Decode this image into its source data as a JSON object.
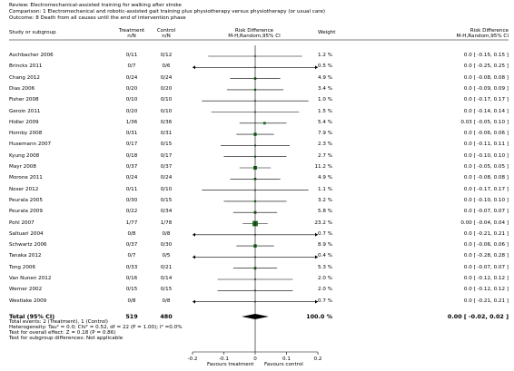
{
  "review": {
    "review_line": "Review:  Electromechanical-assisted training for walking after stroke",
    "comparison_line": "Comparison:  1 Electromechanical and robotic-assisted gait training plus physiotherapy versus physiotherapy (or usual care)",
    "outcome_line": "Outcome:  8 Death from all causes until the end of intervention phase"
  },
  "columns": {
    "study": "Study or subgroup",
    "treatment": "Treatment",
    "treatment_sub": "n/N",
    "control": "Control",
    "control_sub": "n/N",
    "rd": "Risk Difference",
    "rd_sub": "M-H,Random,95% CI",
    "weight": "Weight",
    "rd2": "Risk Difference",
    "rd2_sub": "M-H,Random,95% CI"
  },
  "chart_data": {
    "type": "forest",
    "x_axis": {
      "min": -0.2,
      "max": 0.2,
      "ticks": [
        "-0.2",
        "-0.1",
        "0",
        "0.1",
        "0.2"
      ],
      "tick_values": [
        -0.2,
        -0.1,
        0,
        0.1,
        0.2
      ]
    },
    "favours_left": "Favours treatment",
    "favours_right": "Favours control",
    "studies": [
      {
        "name": "Aschbacher 2006",
        "treatment": "0/11",
        "control": "0/12",
        "weight": "1.2 %",
        "ci_text": "0.0 [ -0.15, 0.15 ]",
        "rd": 0.0,
        "lo": -0.15,
        "hi": 0.15,
        "w": 1.2
      },
      {
        "name": "Brincks 2011",
        "treatment": "0/7",
        "control": "0/6",
        "weight": "0.5 %",
        "ci_text": "0.0 [ -0.25, 0.25 ]",
        "rd": 0.0,
        "lo": -0.25,
        "hi": 0.25,
        "w": 0.5
      },
      {
        "name": "Chang 2012",
        "treatment": "0/24",
        "control": "0/24",
        "weight": "4.9 %",
        "ci_text": "0.0 [ -0.08, 0.08 ]",
        "rd": 0.0,
        "lo": -0.08,
        "hi": 0.08,
        "w": 4.9
      },
      {
        "name": "Dias 2006",
        "treatment": "0/20",
        "control": "0/20",
        "weight": "3.4 %",
        "ci_text": "0.0 [ -0.09, 0.09 ]",
        "rd": 0.0,
        "lo": -0.09,
        "hi": 0.09,
        "w": 3.4
      },
      {
        "name": "Fisher 2008",
        "treatment": "0/10",
        "control": "0/10",
        "weight": "1.0 %",
        "ci_text": "0.0 [ -0.17, 0.17 ]",
        "rd": 0.0,
        "lo": -0.17,
        "hi": 0.17,
        "w": 1.0
      },
      {
        "name": "Geroin 2011",
        "treatment": "0/20",
        "control": "0/10",
        "weight": "1.5 %",
        "ci_text": "0.0 [ -0.14, 0.14 ]",
        "rd": 0.0,
        "lo": -0.14,
        "hi": 0.14,
        "w": 1.5
      },
      {
        "name": "Hidler 2009",
        "treatment": "1/36",
        "control": "0/36",
        "weight": "5.4 %",
        "ci_text": "0.03 [ -0.05, 0.10 ]",
        "rd": 0.03,
        "lo": -0.05,
        "hi": 0.1,
        "w": 5.4
      },
      {
        "name": "Hornby 2008",
        "treatment": "0/31",
        "control": "0/31",
        "weight": "7.9 %",
        "ci_text": "0.0 [ -0.06, 0.06 ]",
        "rd": 0.0,
        "lo": -0.06,
        "hi": 0.06,
        "w": 7.9
      },
      {
        "name": "Husemann 2007",
        "treatment": "0/17",
        "control": "0/15",
        "weight": "2.3 %",
        "ci_text": "0.0 [ -0.11, 0.11 ]",
        "rd": 0.0,
        "lo": -0.11,
        "hi": 0.11,
        "w": 2.3
      },
      {
        "name": "Kyung 2008",
        "treatment": "0/18",
        "control": "0/17",
        "weight": "2.7 %",
        "ci_text": "0.0 [ -0.10, 0.10 ]",
        "rd": 0.0,
        "lo": -0.1,
        "hi": 0.1,
        "w": 2.7
      },
      {
        "name": "Mayr 2008",
        "treatment": "0/37",
        "control": "0/37",
        "weight": "11.2 %",
        "ci_text": "0.0 [ -0.05, 0.05 ]",
        "rd": 0.0,
        "lo": -0.05,
        "hi": 0.05,
        "w": 11.2
      },
      {
        "name": "Morone 2011",
        "treatment": "0/24",
        "control": "0/24",
        "weight": "4.9 %",
        "ci_text": "0.0 [ -0.08, 0.08 ]",
        "rd": 0.0,
        "lo": -0.08,
        "hi": 0.08,
        "w": 4.9
      },
      {
        "name": "Noser 2012",
        "treatment": "0/11",
        "control": "0/10",
        "weight": "1.1 %",
        "ci_text": "0.0 [ -0.17, 0.17 ]",
        "rd": 0.0,
        "lo": -0.17,
        "hi": 0.17,
        "w": 1.1
      },
      {
        "name": "Peurala 2005",
        "treatment": "0/30",
        "control": "0/15",
        "weight": "3.2 %",
        "ci_text": "0.0 [ -0.10, 0.10 ]",
        "rd": 0.0,
        "lo": -0.1,
        "hi": 0.1,
        "w": 3.2
      },
      {
        "name": "Peurala 2009",
        "treatment": "0/22",
        "control": "0/34",
        "weight": "5.8 %",
        "ci_text": "0.0 [ -0.07, 0.07 ]",
        "rd": 0.0,
        "lo": -0.07,
        "hi": 0.07,
        "w": 5.8
      },
      {
        "name": "Pohl 2007",
        "treatment": "1/77",
        "control": "1/78",
        "weight": "23.2 %",
        "ci_text": "0.00 [ -0.04, 0.04 ]",
        "rd": 0.0,
        "lo": -0.04,
        "hi": 0.04,
        "w": 23.2
      },
      {
        "name": "Saltuari 2004",
        "treatment": "0/8",
        "control": "0/8",
        "weight": "0.7 %",
        "ci_text": "0.0 [ -0.21, 0.21 ]",
        "rd": 0.0,
        "lo": -0.21,
        "hi": 0.21,
        "w": 0.7
      },
      {
        "name": "Schwartz 2006",
        "treatment": "0/37",
        "control": "0/30",
        "weight": "8.9 %",
        "ci_text": "0.0 [ -0.06, 0.06 ]",
        "rd": 0.0,
        "lo": -0.06,
        "hi": 0.06,
        "w": 8.9
      },
      {
        "name": "Tanaka 2012",
        "treatment": "0/7",
        "control": "0/5",
        "weight": "0.4 %",
        "ci_text": "0.0 [ -0.28, 0.28 ]",
        "rd": 0.0,
        "lo": -0.28,
        "hi": 0.28,
        "w": 0.4
      },
      {
        "name": "Tong 2006",
        "treatment": "0/33",
        "control": "0/21",
        "weight": "5.3 %",
        "ci_text": "0.0 [ -0.07, 0.07 ]",
        "rd": 0.0,
        "lo": -0.07,
        "hi": 0.07,
        "w": 5.3
      },
      {
        "name": "Van Nunen 2012",
        "treatment": "0/16",
        "control": "0/14",
        "weight": "2.0 %",
        "ci_text": "0.0 [ -0.12, 0.12 ]",
        "rd": 0.0,
        "lo": -0.12,
        "hi": 0.12,
        "w": 2.0
      },
      {
        "name": "Werner 2002",
        "treatment": "0/15",
        "control": "0/15",
        "weight": "2.0 %",
        "ci_text": "0.0 [ -0.12, 0.12 ]",
        "rd": 0.0,
        "lo": -0.12,
        "hi": 0.12,
        "w": 2.0
      },
      {
        "name": "Westlake 2009",
        "treatment": "0/8",
        "control": "0/8",
        "weight": "0.7 %",
        "ci_text": "0.0 [ -0.21, 0.21 ]",
        "rd": 0.0,
        "lo": -0.21,
        "hi": 0.21,
        "w": 0.7
      }
    ],
    "total": {
      "label": "Total (95% CI)",
      "treatment": "519",
      "control": "480",
      "weight": "100.0 %",
      "ci_text": "0.00 [ -0.02, 0.02 ]",
      "rd": 0.0,
      "lo": -0.02,
      "hi": 0.02
    }
  },
  "footnotes": [
    "Total events: 2 (Treatment), 1 (Control)",
    "Heterogeneity: Tau² = 0.0; Chi² = 0.52, df = 22 (P = 1.00); I² =0.0%",
    "Test for overall effect: Z = 0.18 (P = 0.86)",
    "Test for subgroup differences: Not applicable"
  ],
  "colors": {
    "marker": "#1a6b1a",
    "line": "#000000",
    "zero_line": "#000000"
  }
}
